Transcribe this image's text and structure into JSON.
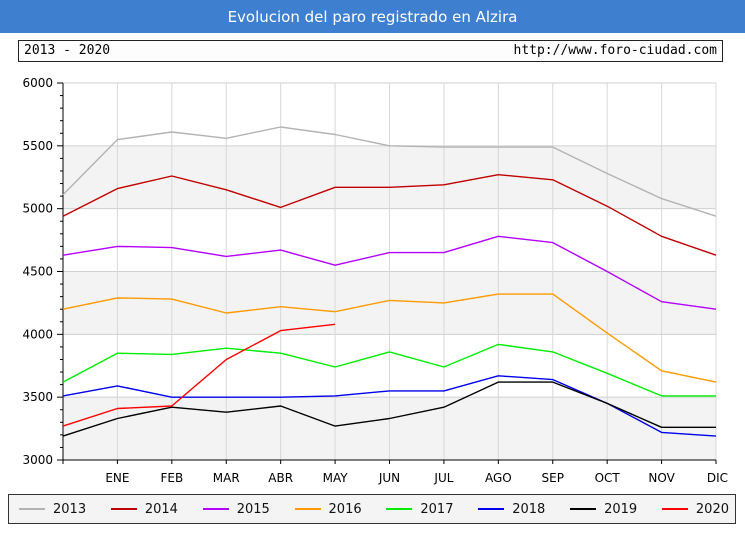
{
  "header": {
    "title": "Evolucion del paro registrado en Alzira"
  },
  "subheader": {
    "range": "2013 - 2020",
    "url": "http://www.foro-ciudad.com"
  },
  "chart_data": {
    "type": "line",
    "categories": [
      "",
      "ENE",
      "FEB",
      "MAR",
      "ABR",
      "MAY",
      "JUN",
      "JUL",
      "AGO",
      "SEP",
      "OCT",
      "NOV",
      "DIC"
    ],
    "ylim": [
      3000,
      6000
    ],
    "yticks": [
      "3000",
      "3500",
      "4000",
      "4500",
      "5000",
      "5500",
      "6000"
    ],
    "grid": true,
    "legend": "bottom",
    "series": [
      {
        "name": "2013",
        "color": "#b3b3b3",
        "values": [
          5110,
          5550,
          5610,
          5560,
          5650,
          5590,
          5500,
          5490,
          5490,
          5490,
          5280,
          5080,
          4940
        ]
      },
      {
        "name": "2014",
        "color": "#c00000",
        "values": [
          4940,
          5160,
          5260,
          5150,
          5010,
          5170,
          5170,
          5190,
          5270,
          5230,
          5020,
          4780,
          4630
        ]
      },
      {
        "name": "2015",
        "color": "#b400ff",
        "values": [
          4630,
          4700,
          4690,
          4620,
          4670,
          4550,
          4650,
          4650,
          4780,
          4730,
          4500,
          4260,
          4200
        ]
      },
      {
        "name": "2016",
        "color": "#ff9900",
        "values": [
          4200,
          4290,
          4280,
          4170,
          4220,
          4180,
          4270,
          4250,
          4320,
          4320,
          4010,
          3710,
          3620
        ]
      },
      {
        "name": "2017",
        "color": "#00ee00",
        "values": [
          3620,
          3850,
          3840,
          3890,
          3850,
          3740,
          3860,
          3740,
          3920,
          3860,
          3690,
          3510,
          3510
        ]
      },
      {
        "name": "2018",
        "color": "#0000ee",
        "values": [
          3510,
          3590,
          3500,
          3500,
          3500,
          3510,
          3550,
          3550,
          3670,
          3640,
          3450,
          3220,
          3190
        ]
      },
      {
        "name": "2019",
        "color": "#000000",
        "values": [
          3190,
          3330,
          3420,
          3380,
          3430,
          3270,
          3330,
          3420,
          3620,
          3620,
          3450,
          3260,
          3260
        ]
      },
      {
        "name": "2020",
        "color": "#ff0000",
        "values": [
          3270,
          3410,
          3430,
          3800,
          4030,
          4080,
          null,
          null,
          null,
          null,
          null,
          null,
          null
        ]
      }
    ]
  }
}
